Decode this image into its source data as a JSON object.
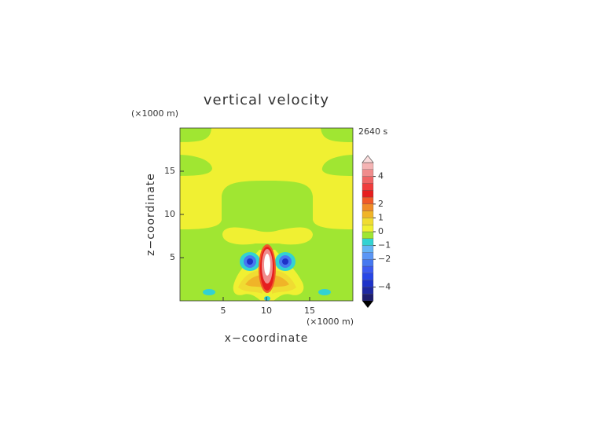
{
  "chart_data": {
    "type": "contour",
    "title": "vertical velocity",
    "x_label": "x−coordinate",
    "y_label": "z−coordinate",
    "x_unit": "(×1000 m)",
    "y_unit": "(×1000 m)",
    "time_label": "2640 s",
    "xlim": [
      0,
      20
    ],
    "xticks": [
      5,
      10,
      15
    ],
    "ylim": [
      0,
      20
    ],
    "yticks": [
      5,
      10,
      15
    ],
    "colorbar": {
      "levels": [
        -5,
        -4.5,
        -4,
        -3.5,
        -3,
        -2.5,
        -2,
        -1.5,
        -1,
        -0.5,
        0,
        0.5,
        1,
        1.5,
        2,
        2.5,
        3,
        3.5,
        4,
        4.5,
        5
      ],
      "colors": [
        "#1e1e6e",
        "#1e28a0",
        "#1e32c8",
        "#2846e6",
        "#3c5af0",
        "#4678f0",
        "#5a96f5",
        "#64b4f5",
        "#32d2d2",
        "#a0e632",
        "#f0f032",
        "#f0dc32",
        "#f0b428",
        "#f08c28",
        "#f05a28",
        "#e61e1e",
        "#f03c3c",
        "#f06464",
        "#f08c8c",
        "#f5b4b4"
      ],
      "under_color": "#000000",
      "over_color": "#fadcdc",
      "ticks": [
        {
          "value": -4,
          "label": "−4"
        },
        {
          "value": -2,
          "label": "−2"
        },
        {
          "value": -1,
          "label": "−1"
        },
        0,
        1,
        2,
        4
      ]
    }
  }
}
